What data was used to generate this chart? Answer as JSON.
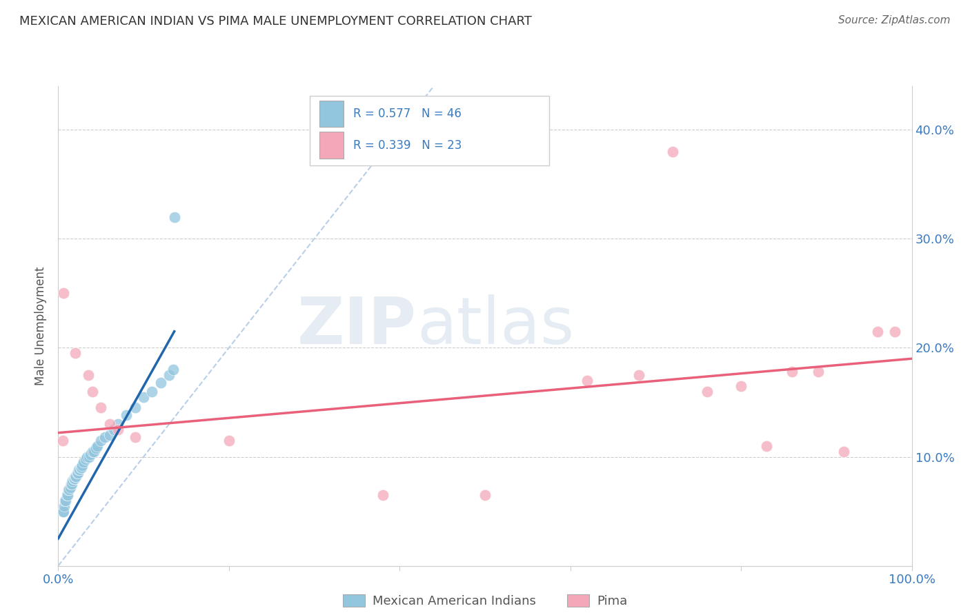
{
  "title": "MEXICAN AMERICAN INDIAN VS PIMA MALE UNEMPLOYMENT CORRELATION CHART",
  "source": "Source: ZipAtlas.com",
  "ylabel": "Male Unemployment",
  "xlim": [
    0.0,
    1.0
  ],
  "ylim": [
    0.0,
    0.44
  ],
  "x_ticks": [
    0.0,
    0.2,
    0.4,
    0.6,
    0.8,
    1.0
  ],
  "x_tick_labels": [
    "0.0%",
    "",
    "",
    "",
    "",
    "100.0%"
  ],
  "y_ticks": [
    0.1,
    0.2,
    0.3,
    0.4
  ],
  "y_tick_labels": [
    "10.0%",
    "20.0%",
    "30.0%",
    "40.0%"
  ],
  "legend_r_blue": "R = 0.577",
  "legend_n_blue": "N = 46",
  "legend_r_pink": "R = 0.339",
  "legend_n_pink": "N = 23",
  "legend_label_blue": "Mexican American Indians",
  "legend_label_pink": "Pima",
  "blue_color": "#92c5de",
  "pink_color": "#f4a7b9",
  "blue_line_color": "#2166ac",
  "pink_line_color": "#e8607a",
  "diagonal_color": "#b8cfe8",
  "watermark_zip": "ZIP",
  "watermark_atlas": "atlas",
  "blue_x": [
    0.005,
    0.006,
    0.007,
    0.008,
    0.009,
    0.01,
    0.011,
    0.012,
    0.013,
    0.014,
    0.015,
    0.016,
    0.017,
    0.018,
    0.019,
    0.02,
    0.021,
    0.022,
    0.023,
    0.024,
    0.025,
    0.026,
    0.027,
    0.028,
    0.03,
    0.032,
    0.034,
    0.036,
    0.038,
    0.04,
    0.042,
    0.044,
    0.046,
    0.05,
    0.055,
    0.06,
    0.065,
    0.07,
    0.08,
    0.09,
    0.1,
    0.11,
    0.12,
    0.13,
    0.135,
    0.136
  ],
  "blue_y": [
    0.05,
    0.05,
    0.055,
    0.06,
    0.06,
    0.065,
    0.065,
    0.07,
    0.07,
    0.072,
    0.075,
    0.075,
    0.078,
    0.08,
    0.08,
    0.082,
    0.082,
    0.085,
    0.085,
    0.088,
    0.088,
    0.09,
    0.09,
    0.092,
    0.095,
    0.098,
    0.1,
    0.1,
    0.102,
    0.105,
    0.105,
    0.108,
    0.11,
    0.115,
    0.118,
    0.12,
    0.125,
    0.13,
    0.138,
    0.145,
    0.155,
    0.16,
    0.168,
    0.175,
    0.18,
    0.32
  ],
  "pink_x": [
    0.005,
    0.006,
    0.02,
    0.035,
    0.04,
    0.05,
    0.06,
    0.07,
    0.09,
    0.2,
    0.38,
    0.5,
    0.62,
    0.68,
    0.72,
    0.76,
    0.8,
    0.83,
    0.86,
    0.89,
    0.92,
    0.96,
    0.98
  ],
  "pink_y": [
    0.115,
    0.25,
    0.195,
    0.175,
    0.16,
    0.145,
    0.13,
    0.125,
    0.118,
    0.115,
    0.065,
    0.065,
    0.17,
    0.175,
    0.38,
    0.16,
    0.165,
    0.11,
    0.178,
    0.178,
    0.105,
    0.215,
    0.215
  ],
  "blue_line_x": [
    0.0,
    0.136
  ],
  "blue_line_y_start": 0.025,
  "blue_line_y_end": 0.215,
  "pink_line_x": [
    0.0,
    1.0
  ],
  "pink_line_y_start": 0.122,
  "pink_line_y_end": 0.19
}
